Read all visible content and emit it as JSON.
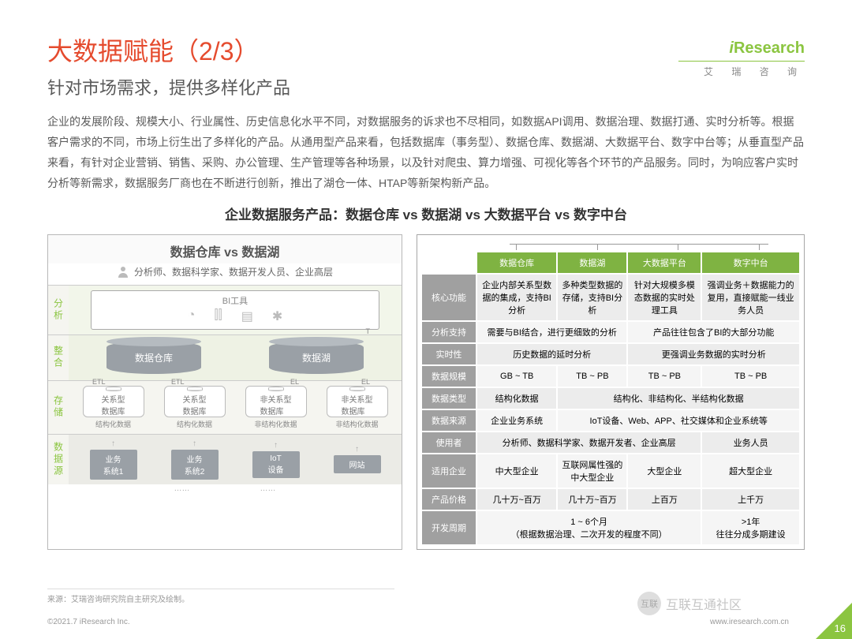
{
  "logo": {
    "brand": "iResearch",
    "cn": "艾 瑞 咨 询"
  },
  "title": "大数据赋能（2/3）",
  "subtitle": "针对市场需求，提供多样化产品",
  "body": "企业的发展阶段、规模大小、行业属性、历史信息化水平不同，对数据服务的诉求也不尽相同，如数据API调用、数据治理、数据打通、实时分析等。根据客户需求的不同，市场上衍生出了多样化的产品。从通用型产品来看，包括数据库（事务型）、数据仓库、数据湖、大数据平台、数字中台等；从垂直型产品来看，有针对企业营销、销售、采购、办公管理、生产管理等各种场景，以及针对爬虫、算力增强、可视化等各个环节的产品服务。同时，为响应客户实时分析等新需求，数据服务厂商也在不断进行创新，推出了湖仓一体、HTAP等新架构新产品。",
  "sectionHeader": "企业数据服务产品：数据仓库 vs 数据湖 vs 大数据平台 vs 数字中台",
  "diagram": {
    "title": "数据仓库 vs 数据湖",
    "audience": "分析师、数据科学家、数据开发人员、企业高层",
    "layers": {
      "analysis": {
        "label": "分析",
        "bi": "BI工具"
      },
      "integrate": {
        "label": "整合",
        "warehouse": "数据仓库",
        "lake": "数据湖"
      },
      "storage": {
        "label": "存储",
        "items": [
          "关系型\n数据库",
          "关系型\n数据库",
          "非关系型\n数据库",
          "非关系型\n数据库"
        ],
        "etl": "ETL",
        "el": "EL",
        "t": "T",
        "subs": [
          "结构化数据",
          "结构化数据",
          "非结构化数据",
          "非结构化数据"
        ]
      },
      "source": {
        "label": "数据源",
        "items": [
          "业务\n系统1",
          "业务\n系统2",
          "IoT\n设备",
          "网站"
        ]
      }
    },
    "dots": "……"
  },
  "table": {
    "headers": [
      "数据仓库",
      "数据湖",
      "大数据平台",
      "数字中台"
    ],
    "rows": [
      {
        "label": "核心功能",
        "cells": [
          "企业内部关系型数据的集成，支持BI分析",
          "多种类型数据的存储，支持BI分析",
          "针对大规模多模态数据的实时处理工具",
          "强调业务＋数据能力的复用，直接赋能一线业务人员"
        ]
      },
      {
        "label": "分析支持",
        "cells": [
          {
            "text": "需要与BI结合，进行更细致的分析",
            "span": 2
          },
          {
            "text": "产品往往包含了BI的大部分功能",
            "span": 2
          }
        ]
      },
      {
        "label": "实时性",
        "cells": [
          {
            "text": "历史数据的延时分析",
            "span": 2
          },
          {
            "text": "更强调业务数据的实时分析",
            "span": 2
          }
        ]
      },
      {
        "label": "数据规模",
        "cells": [
          "GB ~ TB",
          "TB ~ PB",
          "TB ~ PB",
          "TB ~ PB"
        ]
      },
      {
        "label": "数据类型",
        "cells": [
          "结构化数据",
          {
            "text": "结构化、非结构化、半结构化数据",
            "span": 3
          }
        ]
      },
      {
        "label": "数据来源",
        "cells": [
          "企业业务系统",
          {
            "text": "IoT设备、Web、APP、社交媒体和企业系统等",
            "span": 3
          }
        ]
      },
      {
        "label": "使用者",
        "cells": [
          {
            "text": "分析师、数据科学家、数据开发者、企业高层",
            "span": 3
          },
          "业务人员"
        ]
      },
      {
        "label": "适用企业",
        "cells": [
          "中大型企业",
          "互联网属性强的中大型企业",
          "大型企业",
          "超大型企业"
        ]
      },
      {
        "label": "产品价格",
        "cells": [
          "几十万~百万",
          "几十万~百万",
          "上百万",
          "上千万"
        ]
      },
      {
        "label": "开发周期",
        "cells": [
          {
            "text": "1 ~ 6个月\n（根据数据治理、二次开发的程度不同）",
            "span": 3
          },
          ">1年\n往往分成多期建设"
        ]
      }
    ]
  },
  "sourceNote": "来源：艾瑞咨询研究院自主研究及绘制。",
  "copyright": "©2021.7 iResearch Inc.",
  "url": "www.iresearch.com.cn",
  "pageNum": "16",
  "watermark": "互联互通社区",
  "colors": {
    "accent_green": "#8bc540",
    "title_red": "#e54b2e",
    "row_header_grey": "#a0a0a0",
    "cell_bg_a": "#ececec",
    "cell_bg_b": "#f5f5f5"
  }
}
